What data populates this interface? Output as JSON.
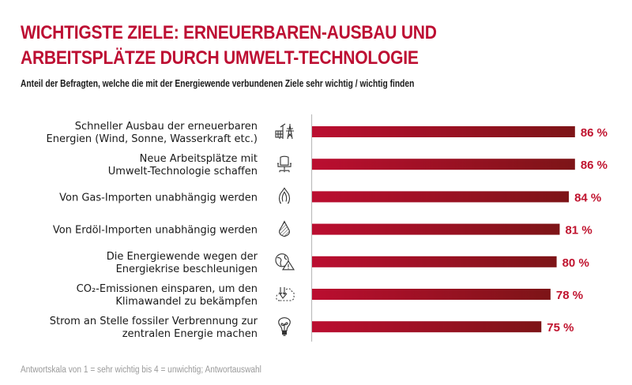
{
  "header": {
    "title_line1": "WICHTIGSTE ZIELE: ERNEUERBAREN-AUSBAU UND",
    "title_line2": "ARBEITSPLÄTZE DURCH UMWELT-TECHNOLOGIE",
    "subtitle": "Anteil der Befragten, welche die mit der Energiewende verbundenen Ziele sehr wichtig / wichtig finden"
  },
  "footnote": "Antwortskala von 1 = sehr wichtig bis 4 = unwichtig; Antwortauswahl",
  "colors": {
    "title": "#bd0f33",
    "bar_start": "#bb0e30",
    "bar_end": "#7d1417",
    "value_label": "#c0142f"
  },
  "chart_data": {
    "type": "bar",
    "orientation": "horizontal",
    "title": "WICHTIGSTE ZIELE: ERNEUERBAREN-AUSBAU UND ARBEITSPLÄTZE DURCH UMWELT-TECHNOLOGIE",
    "subtitle": "Anteil der Befragten, welche die mit der Energiewende verbundenen Ziele sehr wichtig / wichtig finden",
    "xlabel": "",
    "ylabel": "",
    "unit": "%",
    "xlim": [
      0,
      100
    ],
    "grid": false,
    "categories": [
      [
        "Schneller Ausbau der erneuerbaren",
        "Energien (Wind, Sonne, Wasserkraft etc.)"
      ],
      [
        "Neue Arbeitsplätze mit",
        "Umwelt-Technologie schaffen"
      ],
      [
        "Von Gas-Importen unabhängig werden"
      ],
      [
        "Von Erdöl-Importen unabhängig werden"
      ],
      [
        "Die Energiewende wegen der",
        "Energiekrise beschleunigen"
      ],
      [
        "CO₂-Emissionen einsparen, um den",
        "Klimawandel zu bekämpfen"
      ],
      [
        "Strom an Stelle fossiler Verbrennung zur",
        "zentralen Energie machen"
      ]
    ],
    "icons": [
      "renewables-icon",
      "office-chair-icon",
      "gas-flame-icon",
      "oil-drop-icon",
      "globe-warning-icon",
      "co2-cloud-icon",
      "lightbulb-plant-icon"
    ],
    "values": [
      86,
      86,
      84,
      81,
      80,
      78,
      75
    ],
    "value_labels": [
      "86 %",
      "86 %",
      "84 %",
      "81 %",
      "80 %",
      "78 %",
      "75 %"
    ]
  }
}
